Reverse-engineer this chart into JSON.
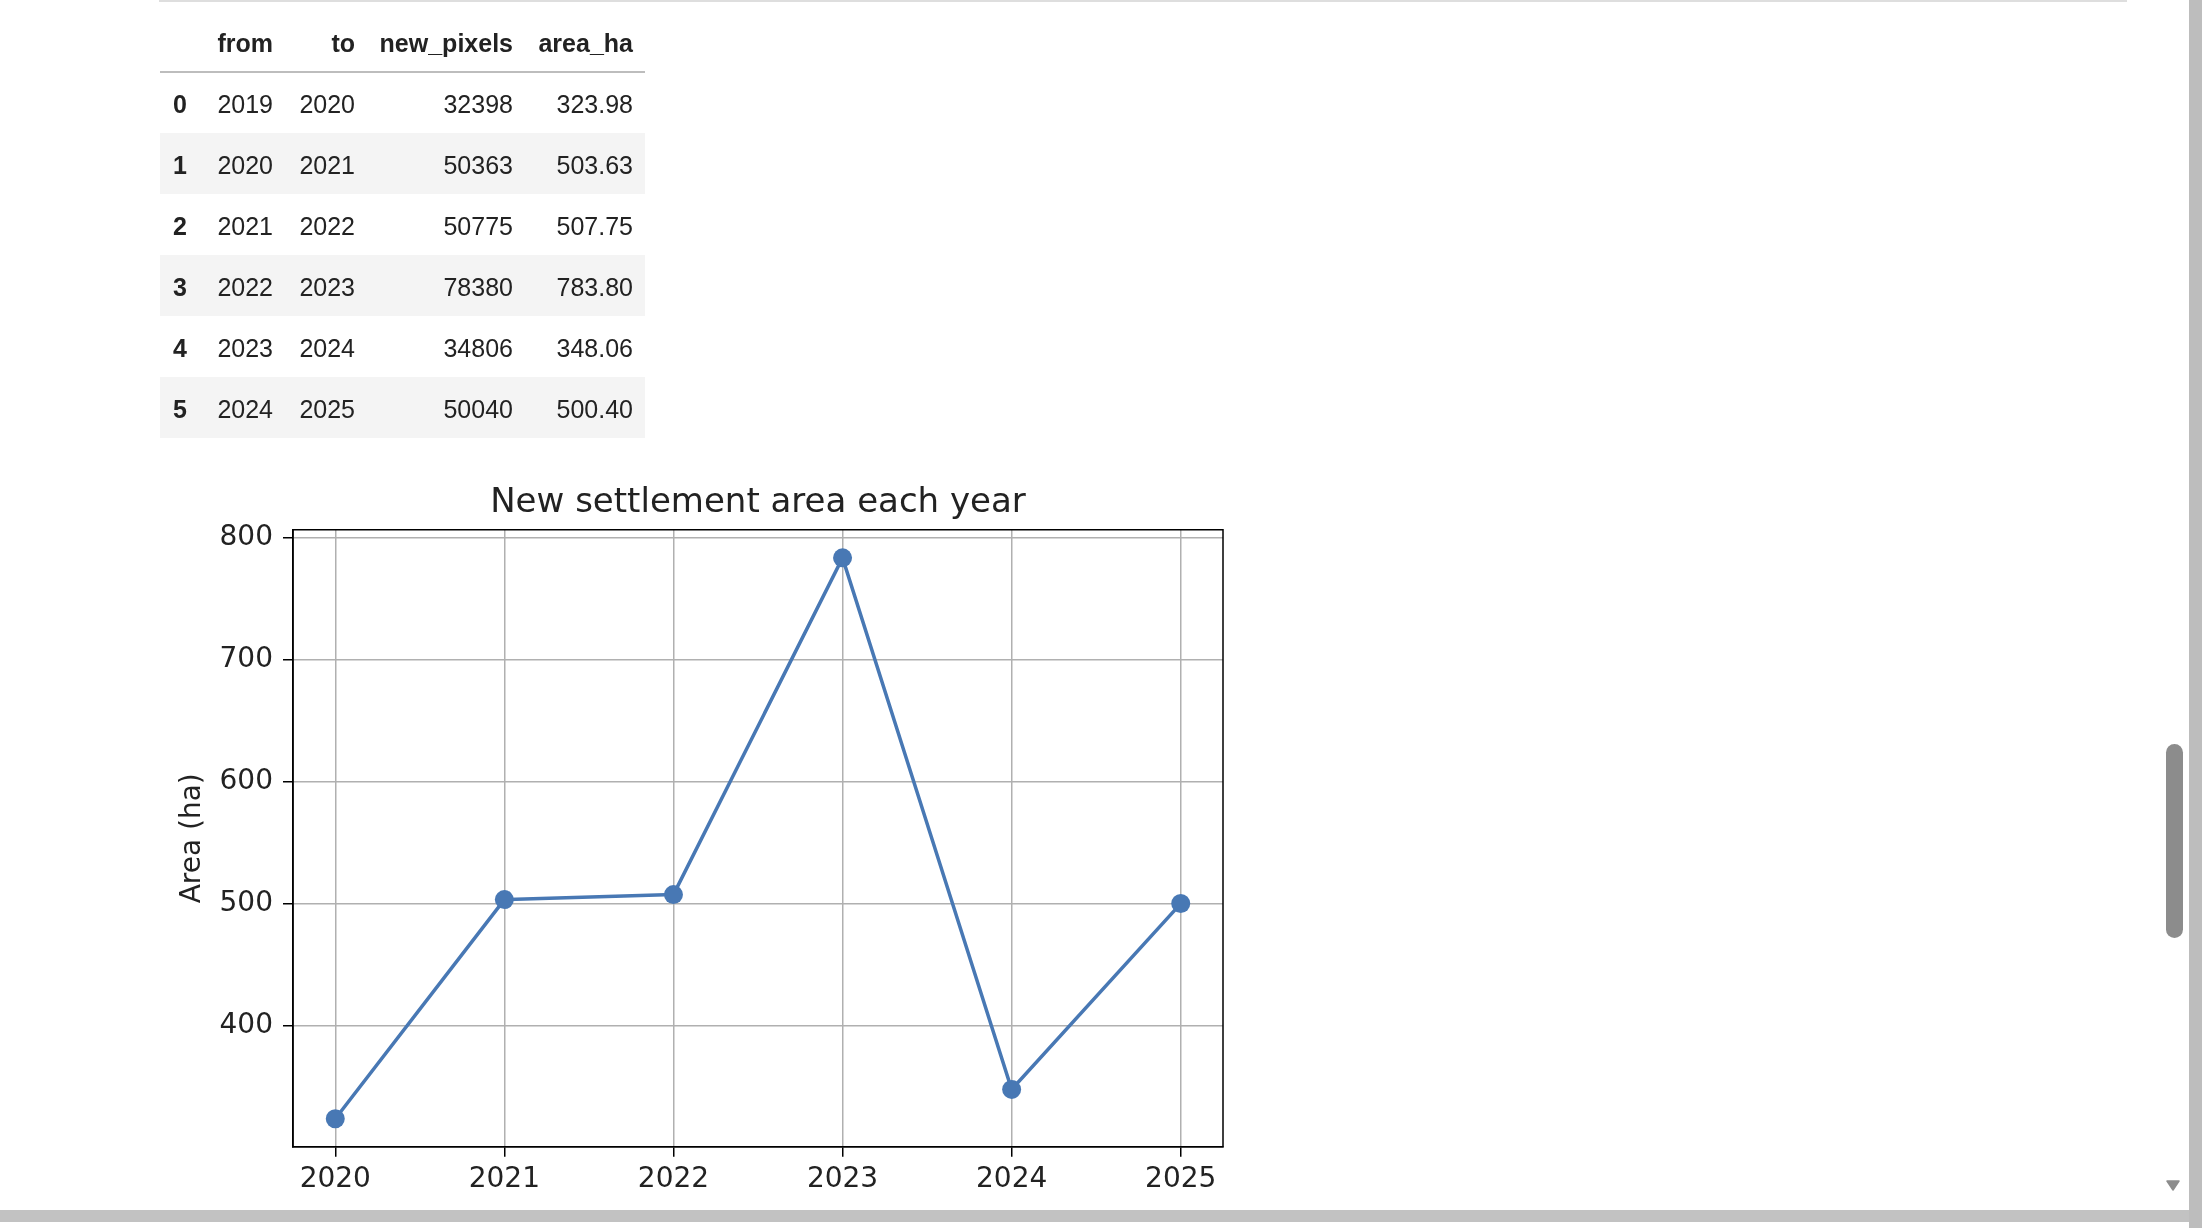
{
  "chart_data": [
    {
      "type": "heatmap",
      "categories": [
        "from",
        "to",
        "new_pixels",
        "area_ha"
      ],
      "y_categories": [
        "0",
        "1",
        "2",
        "3",
        "4",
        "5"
      ],
      "cells": [
        [
          2019,
          2020,
          32398,
          323.98
        ],
        [
          2020,
          2021,
          50363,
          503.63
        ],
        [
          2021,
          2022,
          50775,
          507.75
        ],
        [
          2022,
          2023,
          78380,
          783.8
        ],
        [
          2023,
          2024,
          34806,
          348.06
        ],
        [
          2024,
          2025,
          50040,
          500.4
        ]
      ],
      "cell_labels": [
        [
          "2019",
          "2020",
          "32398",
          "323.98"
        ],
        [
          "2020",
          "2021",
          "50363",
          "503.63"
        ],
        [
          "2021",
          "2022",
          "50775",
          "507.75"
        ],
        [
          "2022",
          "2023",
          "78380",
          "783.80"
        ],
        [
          "2023",
          "2024",
          "34806",
          "348.06"
        ],
        [
          "2024",
          "2025",
          "50040",
          "500.40"
        ]
      ]
    },
    {
      "type": "line",
      "title": "New settlement area each year",
      "ylabel": "Area (ha)",
      "x": [
        2020,
        2021,
        2022,
        2023,
        2024,
        2025
      ],
      "values": [
        323.98,
        503.63,
        507.75,
        783.8,
        348.06,
        500.4
      ],
      "color": "#4878b4",
      "xlim": [
        2019.75,
        2025.25
      ],
      "ylim": [
        301,
        806.8
      ],
      "xticks": [
        2020,
        2021,
        2022,
        2023,
        2024,
        2025
      ],
      "yticks": [
        400,
        500,
        600,
        700,
        800
      ],
      "grid": true,
      "marker": "circle"
    }
  ]
}
